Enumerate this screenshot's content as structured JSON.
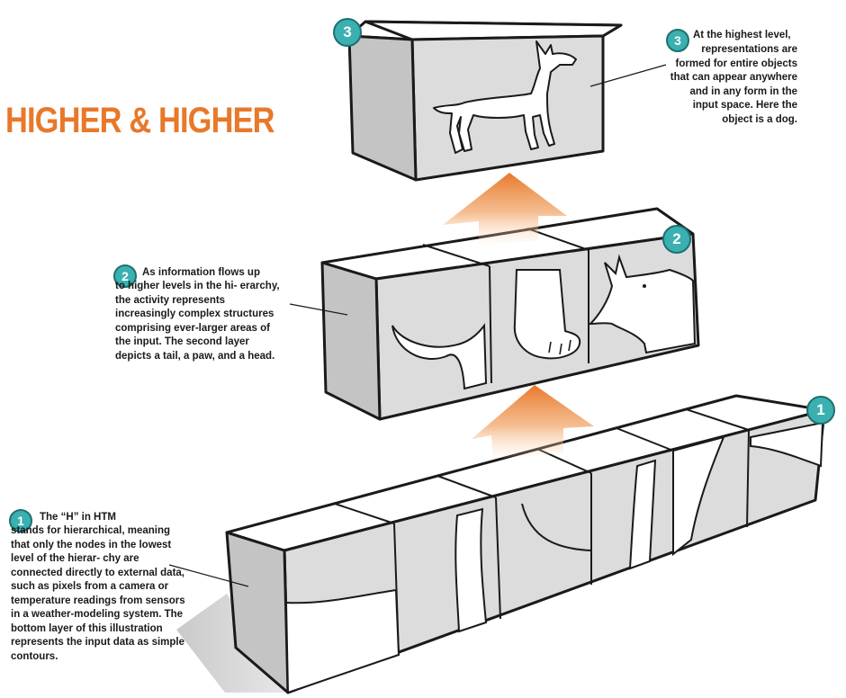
{
  "title": "HIGHER & HIGHER",
  "colors": {
    "accent": "#e8782a",
    "badge": "#3ab0b0",
    "box_side": "#c9c9c9",
    "box_front": "#dedede",
    "box_top": "#ffffff"
  },
  "levels": [
    {
      "badge": "3",
      "note_first": "At the highest level,",
      "note_body": "representations are formed for entire objects that can appear anywhere and in any form in the input space. Here the object is a dog."
    },
    {
      "badge": "2",
      "note_first": "As information flows up",
      "note_body": "to higher levels in the hi- erarchy, the activity represents increasingly complex structures comprising ever-larger areas of the input. The second layer depicts a tail, a paw, and a head."
    },
    {
      "badge": "1",
      "note_first": "The “H” in HTM",
      "note_body": "stands for hierarchical, meaning that only the nodes in the lowest level of the hierar- chy are connected directly to external data, such as pixels from a camera or temperature readings from sensors in a weather-modeling system. The bottom layer of this illustration represents the input data as simple contours."
    }
  ],
  "icons": {
    "arrows": "up-arrow-icon",
    "dog": "dog-icon"
  }
}
